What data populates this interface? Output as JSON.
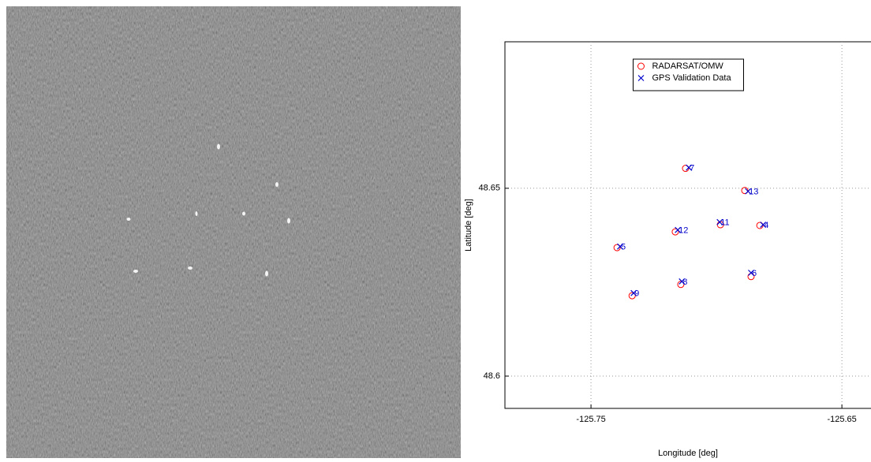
{
  "chart_data": {
    "type": "scatter",
    "xlabel": "Longitude [deg]",
    "ylabel": "Latitude [deg]",
    "xlim": [
      -125.7843,
      -125.6384
    ],
    "ylim": [
      48.5914,
      48.689
    ],
    "xticks": [
      -125.75,
      -125.65
    ],
    "yticks": [
      48.6,
      48.65
    ],
    "grid": true,
    "legend_position": "upper center",
    "series": [
      {
        "name": "RADARSAT/OMW",
        "color": "#ff0000",
        "marker": "circle",
        "x": [
          -125.7123,
          -125.6887,
          -125.6984,
          -125.6827,
          -125.7164,
          -125.7396,
          -125.6862,
          -125.7142,
          -125.7336
        ],
        "y": [
          48.6553,
          48.6494,
          48.6403,
          48.6401,
          48.6384,
          48.6342,
          48.6265,
          48.6244,
          48.6214
        ]
      },
      {
        "name": "GPS Validation Data",
        "color": "#0000cc",
        "marker": "x",
        "x": [
          -125.711,
          -125.6874,
          -125.6987,
          -125.6814,
          -125.7154,
          -125.7384,
          -125.6862,
          -125.7138,
          -125.733
        ],
        "y": [
          48.6555,
          48.6492,
          48.641,
          48.6403,
          48.6389,
          48.6345,
          48.6275,
          48.6252,
          48.6221
        ],
        "point_labels": [
          "7",
          "13",
          "11",
          "4",
          "12",
          "5",
          "6",
          "8",
          "9"
        ]
      }
    ]
  }
}
